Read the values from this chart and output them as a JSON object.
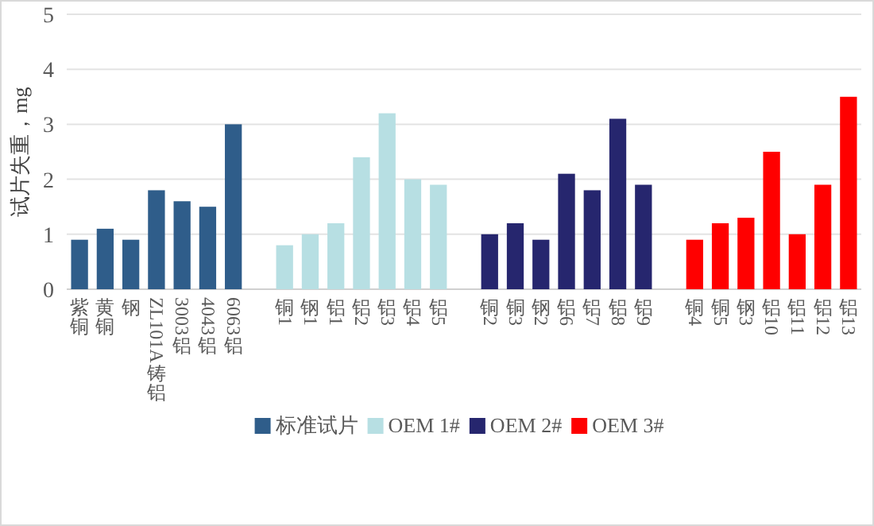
{
  "chart_data": {
    "type": "bar",
    "ylabel": "试片失重，mg",
    "ylim": [
      0,
      5
    ],
    "yticks": [
      0,
      1,
      2,
      3,
      4,
      5
    ],
    "grid": "y",
    "legend": "bottom",
    "categories": [
      "紫铜",
      "黄铜",
      "钢",
      "ZL101A铸铝",
      "3003铝",
      "4043铝",
      "6063铝",
      "铜1",
      "钢1",
      "铝1",
      "铝2",
      "铝3",
      "铝4",
      "铝5",
      "铜2",
      "铜3",
      "钢2",
      "铝6",
      "铝7",
      "铝8",
      "铝9",
      "铜4",
      "铜5",
      "钢3",
      "铝10",
      "铝11",
      "铝12",
      "铝13"
    ],
    "series": [
      {
        "name": "标准试片",
        "color": "#2f5d8a",
        "values": [
          0.9,
          1.1,
          0.9,
          1.8,
          1.6,
          1.5,
          3.0,
          null,
          null,
          null,
          null,
          null,
          null,
          null,
          null,
          null,
          null,
          null,
          null,
          null,
          null,
          null,
          null,
          null,
          null,
          null,
          null,
          null
        ]
      },
      {
        "name": "OEM 1#",
        "color": "#b7dfe3",
        "values": [
          null,
          null,
          null,
          null,
          null,
          null,
          null,
          0.8,
          1.0,
          1.2,
          2.4,
          3.2,
          2.0,
          1.9,
          null,
          null,
          null,
          null,
          null,
          null,
          null,
          null,
          null,
          null,
          null,
          null,
          null,
          null
        ]
      },
      {
        "name": "OEM 2#",
        "color": "#26266e",
        "values": [
          null,
          null,
          null,
          null,
          null,
          null,
          null,
          null,
          null,
          null,
          null,
          null,
          null,
          null,
          1.0,
          1.2,
          0.9,
          2.1,
          1.8,
          3.1,
          1.9,
          null,
          null,
          null,
          null,
          null,
          null,
          null
        ]
      },
      {
        "name": "OEM 3#",
        "color": "#ff0000",
        "values": [
          null,
          null,
          null,
          null,
          null,
          null,
          null,
          null,
          null,
          null,
          null,
          null,
          null,
          null,
          null,
          null,
          null,
          null,
          null,
          null,
          null,
          0.9,
          1.2,
          1.3,
          2.5,
          1.0,
          1.9,
          3.5
        ]
      }
    ]
  }
}
